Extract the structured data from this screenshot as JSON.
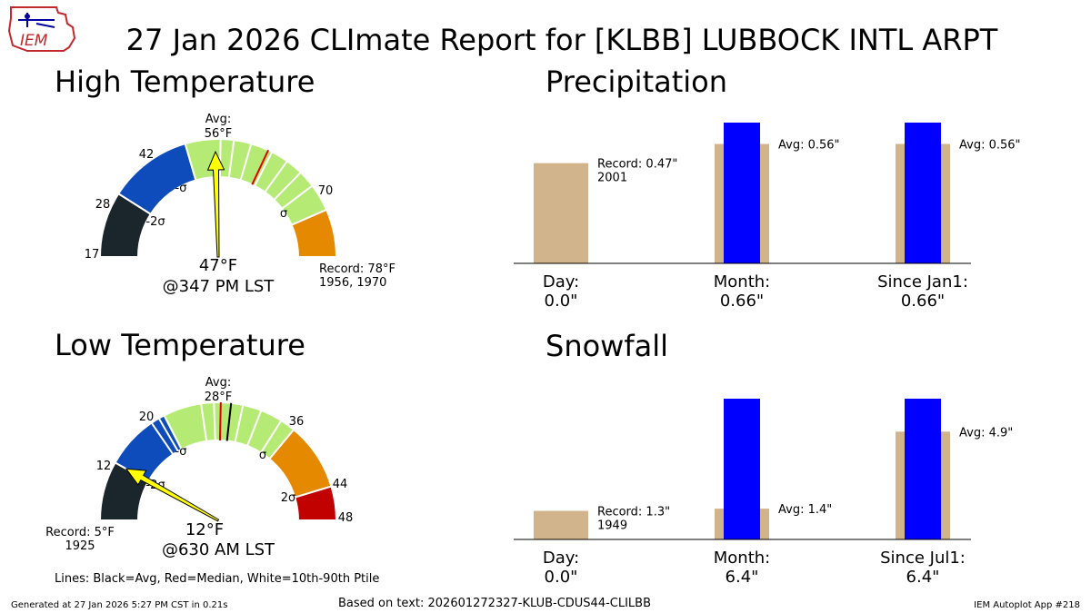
{
  "header": {
    "title": "27 Jan 2026 CLImate Report for [KLBB] LUBBOCK INTL ARPT",
    "logo_text": "IEM"
  },
  "footer": {
    "generated": "Generated at 27 Jan 2026 5:27 PM CST in 0.21s",
    "based_on": "Based on text: 202601272327-KLUB-CDUS44-CLILBB",
    "app": "IEM Autoplot App #218"
  },
  "colors": {
    "lt_minus2": "#1b262c",
    "minus2_minus1": "#0f4cbb",
    "minus1_plus1": "#b5eb75",
    "plus1_plus2": "#e58a00",
    "gt_plus2": "#c10000",
    "needle": "#ffff00",
    "bar_avg": "#d2b48c",
    "bar_obs": "#0000ff"
  },
  "chart_data": [
    {
      "type": "gauge",
      "title": "High Temperature",
      "unit": "°F",
      "range": [
        17,
        78
      ],
      "boundaries": [
        17,
        28,
        42,
        70,
        78
      ],
      "boundary_labels": [
        "17",
        "28",
        "42",
        "70"
      ],
      "sigma_labels": [
        "-2σ",
        "-σ",
        "σ"
      ],
      "segment_colors": [
        "lt_minus2",
        "minus2_minus1",
        "minus1_plus1",
        "plus1_plus2"
      ],
      "percentile_lines": [
        47.9,
        50.1,
        53,
        56.7,
        59.6,
        62.5,
        65.4
      ],
      "average": 56,
      "median": 56,
      "observed": 47,
      "avg_label": [
        "Avg:",
        "56°F"
      ],
      "obs_label": "47°F",
      "time_label": "@347 PM LST",
      "record_label": [
        "Record: 78°F",
        "1956, 1970"
      ]
    },
    {
      "type": "gauge",
      "title": "Low Temperature",
      "unit": "°F",
      "range": [
        5,
        48
      ],
      "boundaries": [
        5,
        12,
        20,
        36,
        44,
        48
      ],
      "boundary_labels": [
        "12",
        "20",
        "36",
        "44",
        "48"
      ],
      "sigma_labels": [
        "-2σ",
        "-σ",
        "σ",
        "2σ"
      ],
      "segment_colors": [
        "lt_minus2",
        "minus2_minus1",
        "minus1_plus1",
        "plus1_plus2",
        "gt_plus2"
      ],
      "percentile_lines": [
        18.3,
        19.3,
        24.5,
        26,
        29.4,
        31.6,
        34.2
      ],
      "average": 28,
      "median": 26.8,
      "observed": 12,
      "avg_label": [
        "Avg:",
        "28°F"
      ],
      "obs_label": "12°F",
      "time_label": "@630 AM LST",
      "record_label": [
        "Record: 5°F",
        "1925"
      ]
    },
    {
      "type": "bar",
      "title": "Precipitation",
      "categories": [
        "Day:",
        "Month:",
        "Since Jan1:"
      ],
      "category_values": [
        "0.0\"",
        "0.66\"",
        "0.66\""
      ],
      "series": [
        {
          "name": "Avg",
          "values": [
            0.47,
            0.56,
            0.56
          ]
        },
        {
          "name": "Observed",
          "values": [
            0.0,
            0.66,
            0.66
          ]
        }
      ],
      "annotations": [
        [
          "Record: 0.47\"",
          "2001"
        ],
        [
          "Avg: 0.56\""
        ],
        [
          "Avg: 0.56\""
        ]
      ]
    },
    {
      "type": "bar",
      "title": "Snowfall",
      "categories": [
        "Day:",
        "Month:",
        "Since Jul1:"
      ],
      "category_values": [
        "0.0\"",
        "6.4\"",
        "6.4\""
      ],
      "series": [
        {
          "name": "Avg",
          "values": [
            1.3,
            1.4,
            4.9
          ]
        },
        {
          "name": "Observed",
          "values": [
            0.0,
            6.4,
            6.4
          ]
        }
      ],
      "annotations": [
        [
          "Record: 1.3\"",
          "1949"
        ],
        [
          "Avg: 1.4\""
        ],
        [
          "Avg: 4.9\""
        ]
      ]
    }
  ],
  "legend_note": "Lines: Black=Avg, Red=Median, White=10th-90th Ptile"
}
